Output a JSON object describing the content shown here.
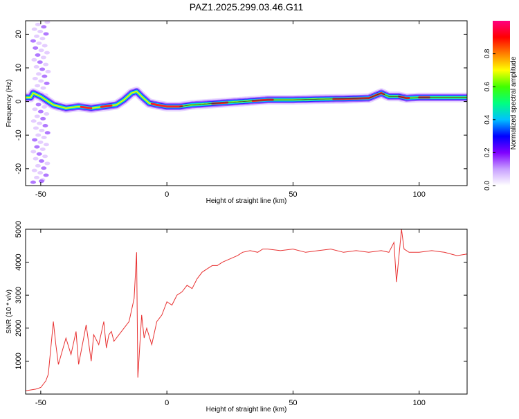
{
  "title": "PAZ1.2025.299.03.46.G11",
  "spectrogram": {
    "xlabel": "Height of straight line (km)",
    "ylabel": "Frequency (Hz)",
    "xlim": [
      -56,
      119
    ],
    "ylim": [
      -25,
      24
    ],
    "xticks": [
      -50,
      0,
      50,
      100
    ],
    "yticks": [
      20,
      10,
      0,
      -10,
      -20
    ],
    "colorbar": {
      "label": "Normalized spectral amplitude",
      "range": [
        0,
        1
      ],
      "ticks": [
        "0.0",
        "0.2",
        "0.4",
        "0.6",
        "0.8"
      ],
      "colormap": [
        "#ffffff",
        "#c8a0ff",
        "#8000ff",
        "#0000ff",
        "#00c0ff",
        "#00ff80",
        "#40ff00",
        "#ffff00",
        "#ff8000",
        "#ff0000",
        "#ff0080"
      ]
    },
    "ridge": {
      "x": [
        -53,
        -50,
        -47,
        -45,
        -40,
        -35,
        -30,
        -25,
        -20,
        -17,
        -14,
        -12,
        -10,
        -7,
        -4,
        0,
        5,
        10,
        20,
        30,
        40,
        50,
        60,
        70,
        80,
        85,
        88,
        92,
        95,
        100,
        110,
        119
      ],
      "freq": [
        2.5,
        1.5,
        0,
        -1,
        -2,
        -1.5,
        -2,
        -1.5,
        -1,
        0.5,
        2.5,
        3,
        1.5,
        -0.5,
        -1,
        -1.5,
        -1.5,
        -1,
        -0.5,
        0,
        0.5,
        0.5,
        0.7,
        0.8,
        1,
        2.5,
        1.5,
        1.5,
        1,
        1.2,
        1.2,
        1.2
      ]
    }
  },
  "chart_data": {
    "type": "line",
    "xlabel": "Height of straight line (km)",
    "ylabel": "SNR (10 * v/v)",
    "xlim": [
      -56,
      119
    ],
    "ylim": [
      0,
      5000
    ],
    "xticks": [
      -50,
      0,
      50,
      100
    ],
    "yticks": [
      1000,
      2000,
      3000,
      4000,
      5000
    ],
    "color": "#e83030",
    "series": [
      {
        "x": [
          -56,
          -52,
          -50,
          -48,
          -47,
          -45,
          -44,
          -43,
          -40,
          -38,
          -36,
          -35,
          -33,
          -32,
          -30,
          -29,
          -27,
          -25,
          -24,
          -23,
          -22,
          -21,
          -19,
          -17,
          -15,
          -13,
          -12,
          -11.5,
          -10,
          -9,
          -8,
          -6,
          -4,
          -2,
          0,
          2,
          4,
          6,
          8,
          10,
          12,
          14,
          16,
          18,
          20,
          22,
          25,
          28,
          30,
          33,
          36,
          38,
          40,
          45,
          50,
          55,
          60,
          65,
          70,
          75,
          80,
          85,
          88,
          90,
          91,
          92,
          93,
          94,
          96,
          100,
          105,
          110,
          115,
          119
        ],
        "y": [
          100,
          150,
          200,
          400,
          600,
          2200,
          1500,
          900,
          1700,
          1200,
          1900,
          900,
          1700,
          2100,
          1000,
          1800,
          1500,
          2200,
          1400,
          1800,
          1900,
          1600,
          1800,
          2000,
          2200,
          2900,
          4300,
          500,
          2400,
          1700,
          2000,
          1500,
          2200,
          2400,
          2800,
          2700,
          3000,
          3100,
          3300,
          3200,
          3500,
          3700,
          3800,
          3900,
          3900,
          4000,
          4100,
          4200,
          4300,
          4350,
          4300,
          4400,
          4400,
          4350,
          4400,
          4300,
          4350,
          4400,
          4300,
          4350,
          4300,
          4350,
          4300,
          4600,
          3400,
          4200,
          5000,
          4400,
          4300,
          4300,
          4350,
          4300,
          4200,
          4250
        ]
      }
    ]
  }
}
